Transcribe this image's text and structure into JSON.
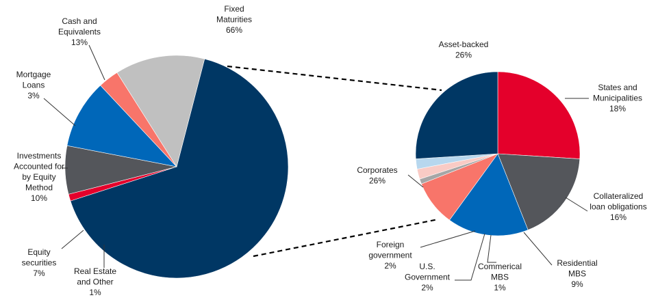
{
  "chart_data": [
    {
      "type": "pie",
      "title": "",
      "slices": [
        {
          "label": "Fixed Maturities",
          "lines": [
            "Fixed",
            "Maturities"
          ],
          "pct_label": "66%",
          "value": 66,
          "color": "#003764",
          "exploded": true
        },
        {
          "label": "Real Estate and Other",
          "lines": [
            "Real Estate",
            "and Other"
          ],
          "pct_label": "1%",
          "value": 1,
          "color": "#e4002b"
        },
        {
          "label": "Equity securities",
          "lines": [
            "Equity",
            "securities"
          ],
          "pct_label": "7%",
          "value": 7,
          "color": "#54565b"
        },
        {
          "label": "Investments Accounted for by Equity Method",
          "lines": [
            "Investments",
            "Accounted for",
            "by Equity",
            "Method"
          ],
          "pct_label": "10%",
          "value": 10,
          "color": "#0067b9"
        },
        {
          "label": "Mortgage Loans",
          "lines": [
            "Mortgage",
            "Loans"
          ],
          "pct_label": "3%",
          "value": 3,
          "color": "#f8756a"
        },
        {
          "label": "Cash and Equivalents",
          "lines": [
            "Cash and",
            "Equivalents"
          ],
          "pct_label": "13%",
          "value": 13,
          "color": "#c0c0c0"
        }
      ]
    },
    {
      "type": "pie",
      "title": "",
      "parent": "Fixed Maturities",
      "slices": [
        {
          "label": "Asset-backed",
          "lines": [
            "Asset-backed"
          ],
          "pct_label": "26%",
          "value": 26,
          "color": "#e4002b"
        },
        {
          "label": "States and Municipalities",
          "lines": [
            "States and",
            "Municipalities"
          ],
          "pct_label": "18%",
          "value": 18,
          "color": "#54565b"
        },
        {
          "label": "Collateralized loan obligations",
          "lines": [
            "Collateralized",
            "loan obligations"
          ],
          "pct_label": "16%",
          "value": 16,
          "color": "#0067b9"
        },
        {
          "label": "Residential MBS",
          "lines": [
            "Residential",
            "MBS"
          ],
          "pct_label": "9%",
          "value": 9,
          "color": "#f8756a"
        },
        {
          "label": "Commerical MBS",
          "lines": [
            "Commerical",
            "MBS"
          ],
          "pct_label": "1%",
          "value": 1,
          "color": "#a6a6a6"
        },
        {
          "label": "U.S. Government",
          "lines": [
            "U.S.",
            "Government"
          ],
          "pct_label": "2%",
          "value": 2,
          "color": "#f9cbc5"
        },
        {
          "label": "Foreign government",
          "lines": [
            "Foreign",
            "government"
          ],
          "pct_label": "2%",
          "value": 2,
          "color": "#b7d7ee"
        },
        {
          "label": "Corporates",
          "lines": [
            "Corporates"
          ],
          "pct_label": "26%",
          "value": 26,
          "color": "#003764"
        }
      ]
    }
  ],
  "colors": {
    "background": "#ffffff",
    "leader_line": "#333333",
    "connector": "#000000"
  }
}
